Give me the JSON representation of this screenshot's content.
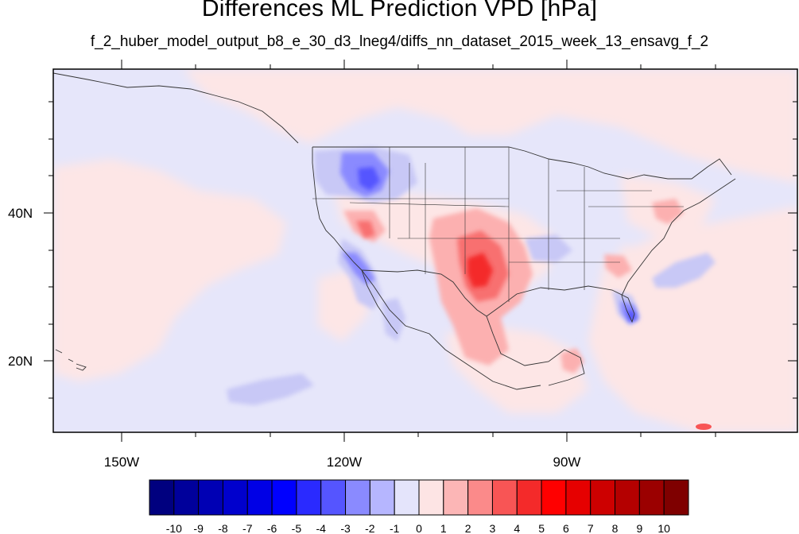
{
  "title": "Differences ML Prediction VPD [hPa]",
  "subtitle": "f_2_huber_model_output_b8_e_30_d3_lneg4/diffs_nn_dataset_2015_week_13_ensavg_f_2",
  "axes": {
    "lat_labels": [
      "40N",
      "20N"
    ],
    "lon_labels": [
      "150W",
      "120W",
      "90W"
    ]
  },
  "colorbar": {
    "labels": [
      "-10",
      "-9",
      "-8",
      "-7",
      "-6",
      "-5",
      "-4",
      "-3",
      "-2",
      "-1",
      "0",
      "1",
      "2",
      "3",
      "4",
      "5",
      "6",
      "7",
      "8",
      "9",
      "10"
    ],
    "colors": [
      "#00007f",
      "#00009b",
      "#0000b4",
      "#0000cd",
      "#0000e6",
      "#0000ff",
      "#2a2aff",
      "#5555ff",
      "#8a8aff",
      "#b6b6ff",
      "#e4e4fb",
      "#fde4e4",
      "#fcb6b6",
      "#fb8a8a",
      "#f85555",
      "#f42a2a",
      "#ff0000",
      "#e60000",
      "#cd0000",
      "#b40000",
      "#9b0000",
      "#7f0000"
    ]
  },
  "chart_data": {
    "type": "heatmap",
    "title": "Differences ML Prediction VPD [hPa]",
    "subtitle": "f_2_huber_model_output_b8_e_30_d3_lneg4/diffs_nn_dataset_2015_week_13_ensavg_f_2",
    "x_ticks": [
      "150W",
      "120W",
      "90W"
    ],
    "y_ticks": [
      "40N",
      "20N"
    ],
    "color_scale_range": [
      -10,
      10
    ],
    "color_levels": [
      -10,
      -9,
      -8,
      -7,
      -6,
      -5,
      -4,
      -3,
      -2,
      -1,
      0,
      1,
      2,
      3,
      4,
      5,
      6,
      7,
      8,
      9,
      10
    ]
  }
}
